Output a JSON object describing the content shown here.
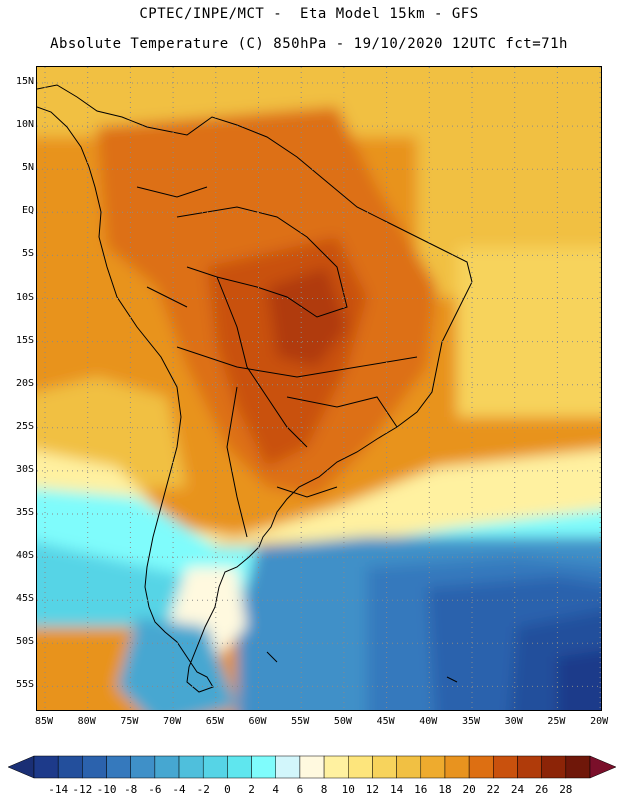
{
  "header": {
    "line1": "CPTEC/INPE/MCT -  Eta Model 15km - GFS",
    "line2": "Absolute Temperature (C) 850hPa - 19/10/2020 12UTC fct=71h"
  },
  "map": {
    "region": "South America",
    "lat_labels": [
      "15N",
      "10N",
      "5N",
      "EQ",
      "5S",
      "10S",
      "15S",
      "20S",
      "25S",
      "30S",
      "35S",
      "40S",
      "45S",
      "50S",
      "55S"
    ],
    "lon_labels": [
      "85W",
      "80W",
      "75W",
      "70W",
      "65W",
      "60W",
      "55W",
      "50W",
      "45W",
      "40W",
      "35W",
      "30W",
      "25W",
      "20W"
    ],
    "grid": true,
    "gridline_style": "dotted"
  },
  "colorbar": {
    "ticks": [
      "-14",
      "-12",
      "-10",
      "-8",
      "-6",
      "-4",
      "-2",
      "0",
      "2",
      "4",
      "6",
      "8",
      "10",
      "12",
      "14",
      "16",
      "18",
      "20",
      "22",
      "24",
      "26",
      "28"
    ],
    "colors": [
      "#1d3a8a",
      "#234f9c",
      "#2b62ad",
      "#3579bd",
      "#3f90c8",
      "#46a7d1",
      "#4fbfdc",
      "#56d4e6",
      "#5fe6ee",
      "#7ffcfc",
      "#d2f6fb",
      "#fff9df",
      "#fff1a0",
      "#fde57c",
      "#f7d35c",
      "#f1c043",
      "#eeab2e",
      "#e8931f",
      "#dd6f12",
      "#c9510d",
      "#b03b0a",
      "#8c2407",
      "#6f1709"
    ],
    "under_color": "#1a2f75",
    "over_color": "#7a0f2a"
  }
}
